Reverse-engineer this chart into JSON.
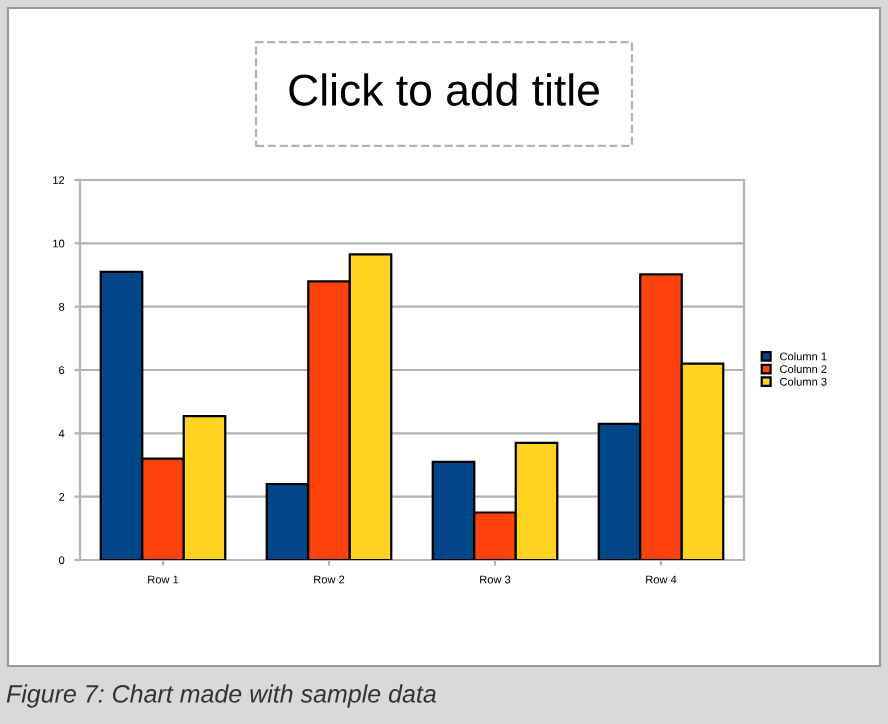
{
  "chart_data": {
    "type": "bar",
    "title": "Click to add title",
    "categories": [
      "Row 1",
      "Row 2",
      "Row 3",
      "Row 4"
    ],
    "series": [
      {
        "name": "Column 1",
        "color": "#004586",
        "values": [
          9.1,
          2.4,
          3.1,
          4.3
        ]
      },
      {
        "name": "Column 2",
        "color": "#ff420e",
        "values": [
          3.2,
          8.8,
          1.5,
          9.02
        ]
      },
      {
        "name": "Column 3",
        "color": "#ffd320",
        "values": [
          4.54,
          9.65,
          3.7,
          6.2
        ]
      }
    ],
    "ylim": [
      0,
      12
    ],
    "yticks": [
      0,
      2,
      4,
      6,
      8,
      10,
      12
    ],
    "grid": "y",
    "legend": "right",
    "annotations": [
      "Figure 7: Chart made with sample data"
    ]
  }
}
